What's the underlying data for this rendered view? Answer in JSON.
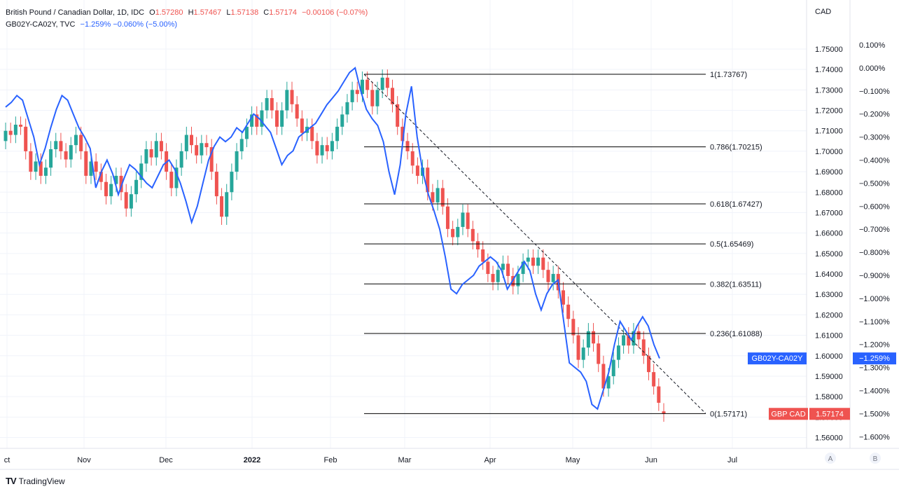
{
  "header": {
    "symbol": "British Pound / Canadian Dollar, 1D, IDC",
    "open_label": "O",
    "open": "1.57280",
    "high_label": "H",
    "high": "1.57467",
    "low_label": "L",
    "low": "1.57138",
    "close_label": "C",
    "close": "1.57174",
    "change": "−0.00106 (−0.07%)",
    "overlay_symbol": "GB02Y-CA02Y, TVC",
    "overlay_values": "−1.259%  −0.060% (−5.00%)"
  },
  "axes": {
    "right_unit": "CAD",
    "scale_buttons": [
      "A",
      "B"
    ]
  },
  "brand": "TradingView",
  "colors": {
    "up": "#26a69a",
    "down": "#ef5350",
    "overlay": "#2962ff",
    "fib": "#000000",
    "grid": "#f0f3fa"
  },
  "chart_data": {
    "type": "candlestick",
    "primary_axis": {
      "ylim": [
        1.5547,
        1.7637
      ],
      "ticks": [
        "1.56000",
        "1.57000",
        "1.58000",
        "1.59000",
        "1.60000",
        "1.61000",
        "1.62000",
        "1.63000",
        "1.64000",
        "1.65000",
        "1.66000",
        "1.67000",
        "1.68000",
        "1.69000",
        "1.70000",
        "1.71000",
        "1.72000",
        "1.73000",
        "1.74000",
        "1.75000"
      ]
    },
    "secondary_axis": {
      "ylim": [
        -1.6507,
        0.2033
      ],
      "ticks": [
        "0.100%",
        "0.000%",
        "−0.100%",
        "−0.200%",
        "−0.300%",
        "−0.400%",
        "−0.500%",
        "−0.600%",
        "−0.700%",
        "−0.800%",
        "−0.900%",
        "−1.000%",
        "−1.100%",
        "−1.200%",
        "−1.300%",
        "−1.400%",
        "−1.500%",
        "−1.600%"
      ]
    },
    "x_labels": [
      "ct",
      "Nov",
      "Dec",
      "2022",
      "Feb",
      "Mar",
      "Apr",
      "May",
      "Jun",
      "Jul"
    ],
    "candles": [
      [
        1.705,
        1.71
      ],
      [
        1.71,
        1.708
      ],
      [
        1.708,
        1.713
      ],
      [
        1.713,
        1.712
      ],
      [
        1.712,
        1.7
      ],
      [
        1.7,
        1.69
      ],
      [
        1.69,
        1.695
      ],
      [
        1.695,
        1.688
      ],
      [
        1.688,
        1.692
      ],
      [
        1.692,
        1.701
      ],
      [
        1.701,
        1.705
      ],
      [
        1.705,
        1.7
      ],
      [
        1.7,
        1.696
      ],
      [
        1.696,
        1.703
      ],
      [
        1.703,
        1.708
      ],
      [
        1.708,
        1.7
      ],
      [
        1.7,
        1.688
      ],
      [
        1.688,
        1.695
      ],
      [
        1.695,
        1.69
      ],
      [
        1.69,
        1.685
      ],
      [
        1.685,
        1.678
      ],
      [
        1.678,
        1.684
      ],
      [
        1.684,
        1.688
      ],
      [
        1.688,
        1.68
      ],
      [
        1.68,
        1.672
      ],
      [
        1.672,
        1.679
      ],
      [
        1.679,
        1.686
      ],
      [
        1.686,
        1.694
      ],
      [
        1.694,
        1.701
      ],
      [
        1.701,
        1.697
      ],
      [
        1.697,
        1.705
      ],
      [
        1.705,
        1.7
      ],
      [
        1.7,
        1.69
      ],
      [
        1.69,
        1.682
      ],
      [
        1.682,
        1.692
      ],
      [
        1.692,
        1.7
      ],
      [
        1.7,
        1.708
      ],
      [
        1.708,
        1.703
      ],
      [
        1.703,
        1.698
      ],
      [
        1.698,
        1.704
      ],
      [
        1.704,
        1.702
      ],
      [
        1.702,
        1.69
      ],
      [
        1.69,
        1.678
      ],
      [
        1.678,
        1.668
      ],
      [
        1.668,
        1.68
      ],
      [
        1.68,
        1.69
      ],
      [
        1.69,
        1.7
      ],
      [
        1.7,
        1.706
      ],
      [
        1.706,
        1.712
      ],
      [
        1.712,
        1.718
      ],
      [
        1.718,
        1.712
      ],
      [
        1.712,
        1.72
      ],
      [
        1.72,
        1.726
      ],
      [
        1.726,
        1.72
      ],
      [
        1.72,
        1.712
      ],
      [
        1.712,
        1.72
      ],
      [
        1.72,
        1.73
      ],
      [
        1.73,
        1.723
      ],
      [
        1.723,
        1.716
      ],
      [
        1.716,
        1.709
      ],
      [
        1.709,
        1.712
      ],
      [
        1.712,
        1.705
      ],
      [
        1.705,
        1.698
      ],
      [
        1.698,
        1.703
      ],
      [
        1.703,
        1.7
      ],
      [
        1.7,
        1.705
      ],
      [
        1.705,
        1.712
      ],
      [
        1.712,
        1.718
      ],
      [
        1.718,
        1.724
      ],
      [
        1.724,
        1.73
      ],
      [
        1.73,
        1.728
      ],
      [
        1.728,
        1.735
      ],
      [
        1.735,
        1.73
      ],
      [
        1.73,
        1.722
      ],
      [
        1.722,
        1.73
      ],
      [
        1.73,
        1.736
      ],
      [
        1.736,
        1.731
      ],
      [
        1.731,
        1.723
      ],
      [
        1.723,
        1.712
      ],
      [
        1.712,
        1.705
      ],
      [
        1.705,
        1.7
      ],
      [
        1.7,
        1.693
      ],
      [
        1.693,
        1.688
      ],
      [
        1.688,
        1.692
      ],
      [
        1.692,
        1.68
      ],
      [
        1.68,
        1.675
      ],
      [
        1.675,
        1.682
      ],
      [
        1.682,
        1.673
      ],
      [
        1.673,
        1.662
      ],
      [
        1.662,
        1.658
      ],
      [
        1.658,
        1.663
      ],
      [
        1.663,
        1.67
      ],
      [
        1.67,
        1.662
      ],
      [
        1.662,
        1.656
      ],
      [
        1.656,
        1.652
      ],
      [
        1.652,
        1.646
      ],
      [
        1.646,
        1.64
      ],
      [
        1.64,
        1.636
      ],
      [
        1.636,
        1.642
      ],
      [
        1.642,
        1.645
      ],
      [
        1.645,
        1.639
      ],
      [
        1.639,
        1.634
      ],
      [
        1.634,
        1.64
      ],
      [
        1.64,
        1.646
      ],
      [
        1.646,
        1.648
      ],
      [
        1.648,
        1.644
      ],
      [
        1.644,
        1.648
      ],
      [
        1.648,
        1.642
      ],
      [
        1.642,
        1.636
      ],
      [
        1.636,
        1.64
      ],
      [
        1.64,
        1.632
      ],
      [
        1.632,
        1.625
      ],
      [
        1.625,
        1.618
      ],
      [
        1.618,
        1.61
      ],
      [
        1.61,
        1.598
      ],
      [
        1.598,
        1.604
      ],
      [
        1.604,
        1.612
      ],
      [
        1.612,
        1.606
      ],
      [
        1.606,
        1.596
      ],
      [
        1.596,
        1.584
      ],
      [
        1.584,
        1.59
      ],
      [
        1.59,
        1.598
      ],
      [
        1.598,
        1.605
      ],
      [
        1.605,
        1.61
      ],
      [
        1.61,
        1.605
      ],
      [
        1.605,
        1.612
      ],
      [
        1.612,
        1.608
      ],
      [
        1.608,
        1.6
      ],
      [
        1.6,
        1.592
      ],
      [
        1.592,
        1.585
      ],
      [
        1.585,
        1.577
      ],
      [
        1.5728,
        1.57174
      ]
    ],
    "overlay_series": {
      "name": "GB02Y-CA02Y",
      "values": [
        -0.17,
        -0.15,
        -0.12,
        -0.14,
        -0.22,
        -0.3,
        -0.42,
        -0.35,
        -0.26,
        -0.18,
        -0.12,
        -0.14,
        -0.2,
        -0.26,
        -0.3,
        -0.35,
        -0.52,
        -0.45,
        -0.4,
        -0.46,
        -0.55,
        -0.48,
        -0.42,
        -0.44,
        -0.47,
        -0.5,
        -0.52,
        -0.47,
        -0.42,
        -0.4,
        -0.44,
        -0.5,
        -0.58,
        -0.67,
        -0.6,
        -0.5,
        -0.4,
        -0.34,
        -0.3,
        -0.32,
        -0.3,
        -0.26,
        -0.28,
        -0.24,
        -0.2,
        -0.22,
        -0.25,
        -0.28,
        -0.35,
        -0.42,
        -0.38,
        -0.36,
        -0.3,
        -0.28,
        -0.26,
        -0.24,
        -0.2,
        -0.16,
        -0.13,
        -0.1,
        -0.06,
        -0.02,
        0.0,
        -0.1,
        -0.18,
        -0.22,
        -0.25,
        -0.32,
        -0.45,
        -0.55,
        -0.42,
        -0.2,
        -0.08,
        -0.3,
        -0.45,
        -0.55,
        -0.62,
        -0.7,
        -0.82,
        -0.96,
        -0.98,
        -0.94,
        -0.92,
        -0.9,
        -0.86,
        -0.84,
        -0.82,
        -0.84,
        -0.88,
        -0.96,
        -0.92,
        -0.88,
        -0.84,
        -0.88,
        -0.98,
        -1.05,
        -0.98,
        -0.94,
        -0.92,
        -1.1,
        -1.28,
        -1.3,
        -1.32,
        -1.36,
        -1.46,
        -1.48,
        -1.4,
        -1.32,
        -1.2,
        -1.1,
        -1.14,
        -1.18,
        -1.12,
        -1.08,
        -1.12,
        -1.2,
        -1.26
      ]
    },
    "fib_levels": [
      {
        "label": "1(1.73767)",
        "value": 1.73767
      },
      {
        "label": "0.786(1.70215)",
        "value": 1.70215
      },
      {
        "label": "0.618(1.67427)",
        "value": 1.67427
      },
      {
        "label": "0.5(1.65469)",
        "value": 1.65469
      },
      {
        "label": "0.382(1.63511)",
        "value": 1.63511
      },
      {
        "label": "0.236(1.61088)",
        "value": 1.61088
      },
      {
        "label": "0(1.57171)",
        "value": 1.57171
      }
    ],
    "trendline": {
      "from": [
        1.73767
      ],
      "to": [
        1.57171
      ]
    },
    "price_tags": [
      {
        "label": "GBP CAD",
        "value": "1.57174",
        "axis": "primary",
        "y": 1.57174,
        "color": "#ef5350"
      },
      {
        "label": "GB02Y-CA02Y",
        "value": "−1.259%",
        "axis": "secondary",
        "y": -1.259,
        "color": "#2962ff"
      }
    ]
  }
}
